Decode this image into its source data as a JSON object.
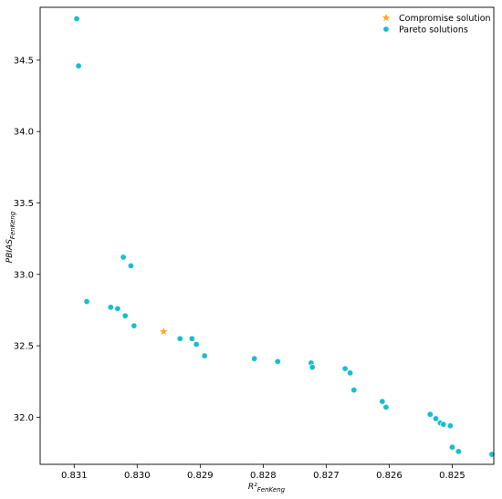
{
  "chart_data": {
    "type": "scatter",
    "xlabel": "R²",
    "xlabel_sub": "FenKeng",
    "ylabel": "PBIAS",
    "ylabel_sub": "FenKeng",
    "x_reversed": true,
    "xlim": [
      0.83154,
      0.82434
    ],
    "ylim": [
      31.67,
      34.87
    ],
    "x_ticks": [
      0.831,
      0.83,
      0.829,
      0.828,
      0.827,
      0.826,
      0.825
    ],
    "x_tick_labels": [
      "0.831",
      "0.830",
      "0.829",
      "0.828",
      "0.827",
      "0.826",
      "0.825"
    ],
    "y_ticks": [
      32.0,
      32.5,
      33.0,
      33.5,
      34.0,
      34.5
    ],
    "y_tick_labels": [
      "32.0",
      "32.5",
      "33.0",
      "33.5",
      "34.0",
      "34.5"
    ],
    "grid": false,
    "legend_position": "top-right",
    "series": [
      {
        "name": "Compromise solution",
        "marker": "star",
        "color": "#ffa726",
        "points": [
          [
            0.82958,
            32.6
          ]
        ]
      },
      {
        "name": "Pareto solutions",
        "marker": "circle",
        "color": "#17becf",
        "points": [
          [
            0.83096,
            34.79
          ],
          [
            0.83093,
            34.46
          ],
          [
            0.83022,
            33.12
          ],
          [
            0.8301,
            33.06
          ],
          [
            0.8308,
            32.81
          ],
          [
            0.83042,
            32.77
          ],
          [
            0.83031,
            32.76
          ],
          [
            0.83019,
            32.71
          ],
          [
            0.83005,
            32.64
          ],
          [
            0.82932,
            32.55
          ],
          [
            0.82913,
            32.55
          ],
          [
            0.82906,
            32.51
          ],
          [
            0.82893,
            32.43
          ],
          [
            0.82814,
            32.41
          ],
          [
            0.82777,
            32.39
          ],
          [
            0.82724,
            32.38
          ],
          [
            0.82722,
            32.35
          ],
          [
            0.8267,
            32.34
          ],
          [
            0.82662,
            32.31
          ],
          [
            0.82656,
            32.19
          ],
          [
            0.82611,
            32.11
          ],
          [
            0.82605,
            32.07
          ],
          [
            0.82535,
            32.02
          ],
          [
            0.82526,
            31.99
          ],
          [
            0.82519,
            31.96
          ],
          [
            0.82514,
            31.95
          ],
          [
            0.82503,
            31.94
          ],
          [
            0.825,
            31.79
          ],
          [
            0.8249,
            31.76
          ],
          [
            0.82437,
            31.74
          ]
        ]
      }
    ]
  }
}
